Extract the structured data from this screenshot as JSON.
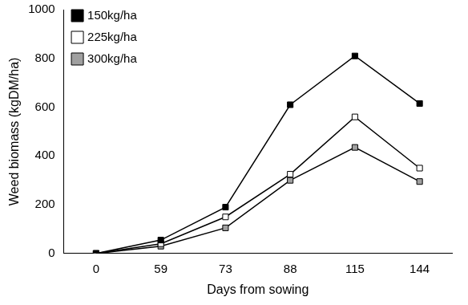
{
  "chart_data": {
    "type": "line",
    "x_label": "Days from sowing",
    "y_label": "Weed biomass (kgDM/ha)",
    "categories": [
      "0",
      "59",
      "73",
      "88",
      "115",
      "144"
    ],
    "series": [
      {
        "name": "150kg/ha",
        "color": "#000000",
        "values": [
          0,
          55,
          190,
          610,
          810,
          615
        ]
      },
      {
        "name": "225kg/ha",
        "color": "#ffffff",
        "values": [
          0,
          40,
          150,
          325,
          560,
          350
        ]
      },
      {
        "name": "300kg/ha",
        "color": "#a0a0a0",
        "values": [
          0,
          30,
          105,
          300,
          435,
          295
        ]
      }
    ],
    "ylim": [
      0,
      1000
    ],
    "yticks": [
      0,
      200,
      400,
      600,
      800,
      1000
    ],
    "grid": false,
    "legend": "top-left",
    "marker": "square"
  }
}
